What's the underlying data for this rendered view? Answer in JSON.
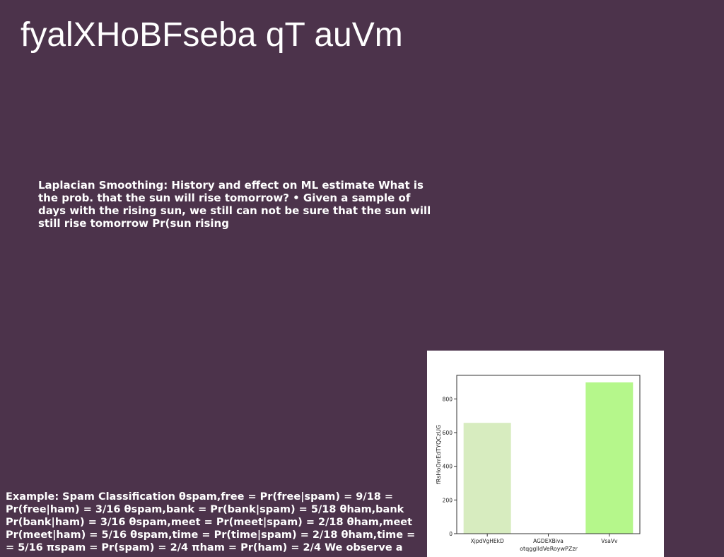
{
  "slide": {
    "title": "fyalXHoBFseba qT auVm",
    "paragraph": "Laplacian Smoothing: History and effect on ML estimate What is the prob. that the sun will rise tomorrow? • Given a sample of days with the rising sun, we still can not be sure that the sun will still rise tomorrow Pr(sun rising",
    "footer": "Example: Spam Classification θspam,free = Pr(free|spam) = 9/18 = Pr(free|ham) = 3/16 θspam,bank = Pr(bank|spam) = 5/18 θham,bank Pr(bank|ham) = 3/16 θspam,meet = Pr(meet|spam) = 2/18 θham,meet Pr(meet|ham) = 5/16 θspam,time = Pr(time|spam) = 2/18 θham,time = = 5/16 πspam = Pr(spam) = 2/4 πham = Pr(ham) = 2/4 We observe a"
  },
  "colors": {
    "background": "#4c334b",
    "text": "#ffffff"
  },
  "chart_data": {
    "type": "bar",
    "categories": [
      "XjpdVgHEkD",
      "AGDEXBiva",
      "VsaVv"
    ],
    "values": [
      658,
      2,
      898
    ],
    "colors": [
      "#d7ecbf",
      "#cfe8b4",
      "#b5f78b"
    ],
    "xlabel": "otqgglldVeRoywPZzr",
    "ylabel": "fRsHoOrrEdTYQCzUG",
    "ylim": [
      0,
      940
    ],
    "yticks": [
      0,
      200,
      400,
      600,
      800
    ],
    "grid": false
  }
}
